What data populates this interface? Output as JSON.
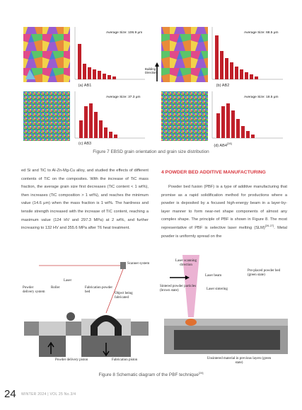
{
  "figure7": {
    "panels": [
      {
        "average": "Average Size: 106.9 μm",
        "label": "(a) AB1"
      },
      {
        "average": "Average Size: 68.5 μm",
        "label": "(b) AB2"
      },
      {
        "average": "Average Size: 37.3 μm",
        "label": "(c) AB3"
      },
      {
        "average": "Average Size: 18.5 μm",
        "label": "(d) AB4",
        "label_ref": "[28]"
      }
    ],
    "building_direction": "Building Direction",
    "caption": "Figure 7 EBSD grain orientation and grain size distribution"
  },
  "body": {
    "left": "ed Si and TiC to Al-Zn-Mg-Cu alloy, and studied the effects of different contents of TiC on the composites. With the increase of TiC mass fraction, the average grain size first decreases (TiC content < 1 wt%), then increases (TiC composition > 1 wt%), and reaches the minimum value (14.6 μm) when the mass fraction is 1 wt%. The hardness and tensile strength increased with the increase of TiC content, reaching a maximum value (124 HV and 297.3 MPa) at 2 wt%, and further increasing to 132 HV and 355.6 MPa after T6 heat treatment.",
    "heading": "4 POWDER BED ADDITIVE MANUFACTURING",
    "right_before": "Powder bed fusion (PBF) is a type of additive manufacturing that promise as a rapid solidification method for productions where a powder is deposited by a focused high-energy beam in a layer-by-layer manner to form near-net shape components of almost any complex shape. The principle of PBF is shown in Figure 8. The most representative of PBF is selective laser melting (SLM)",
    "right_ref": "[26-27]",
    "right_after": ". Metal powder is uniformly spread on the"
  },
  "figure8": {
    "labels": {
      "scanner": "Scanner system",
      "laser": "Laser",
      "roller": "Roller",
      "delivery_system": "Powder delivery system",
      "fab_bed": "Fabrication powder bed",
      "object": "Object being fabricated",
      "delivery_piston": "Powder delivery piston",
      "fab_piston": "Fabrication piston",
      "scan_dir": "Laser scanning direction",
      "laser_beam": "Laser beam",
      "preplaced": "Pre-placed powder bed (green state)",
      "sintered": "Sintered powder particles (brown state)",
      "laser_sintering": "Laser sintering",
      "unsintered": "Unsintered material in previous layers (green state)"
    },
    "caption": "Figure 8 Schematic diagram of the PBF technique",
    "caption_ref": "[28]"
  },
  "footer": {
    "page": "24",
    "issue": "WINTER 2024 | VOL 25 No.3/4"
  }
}
